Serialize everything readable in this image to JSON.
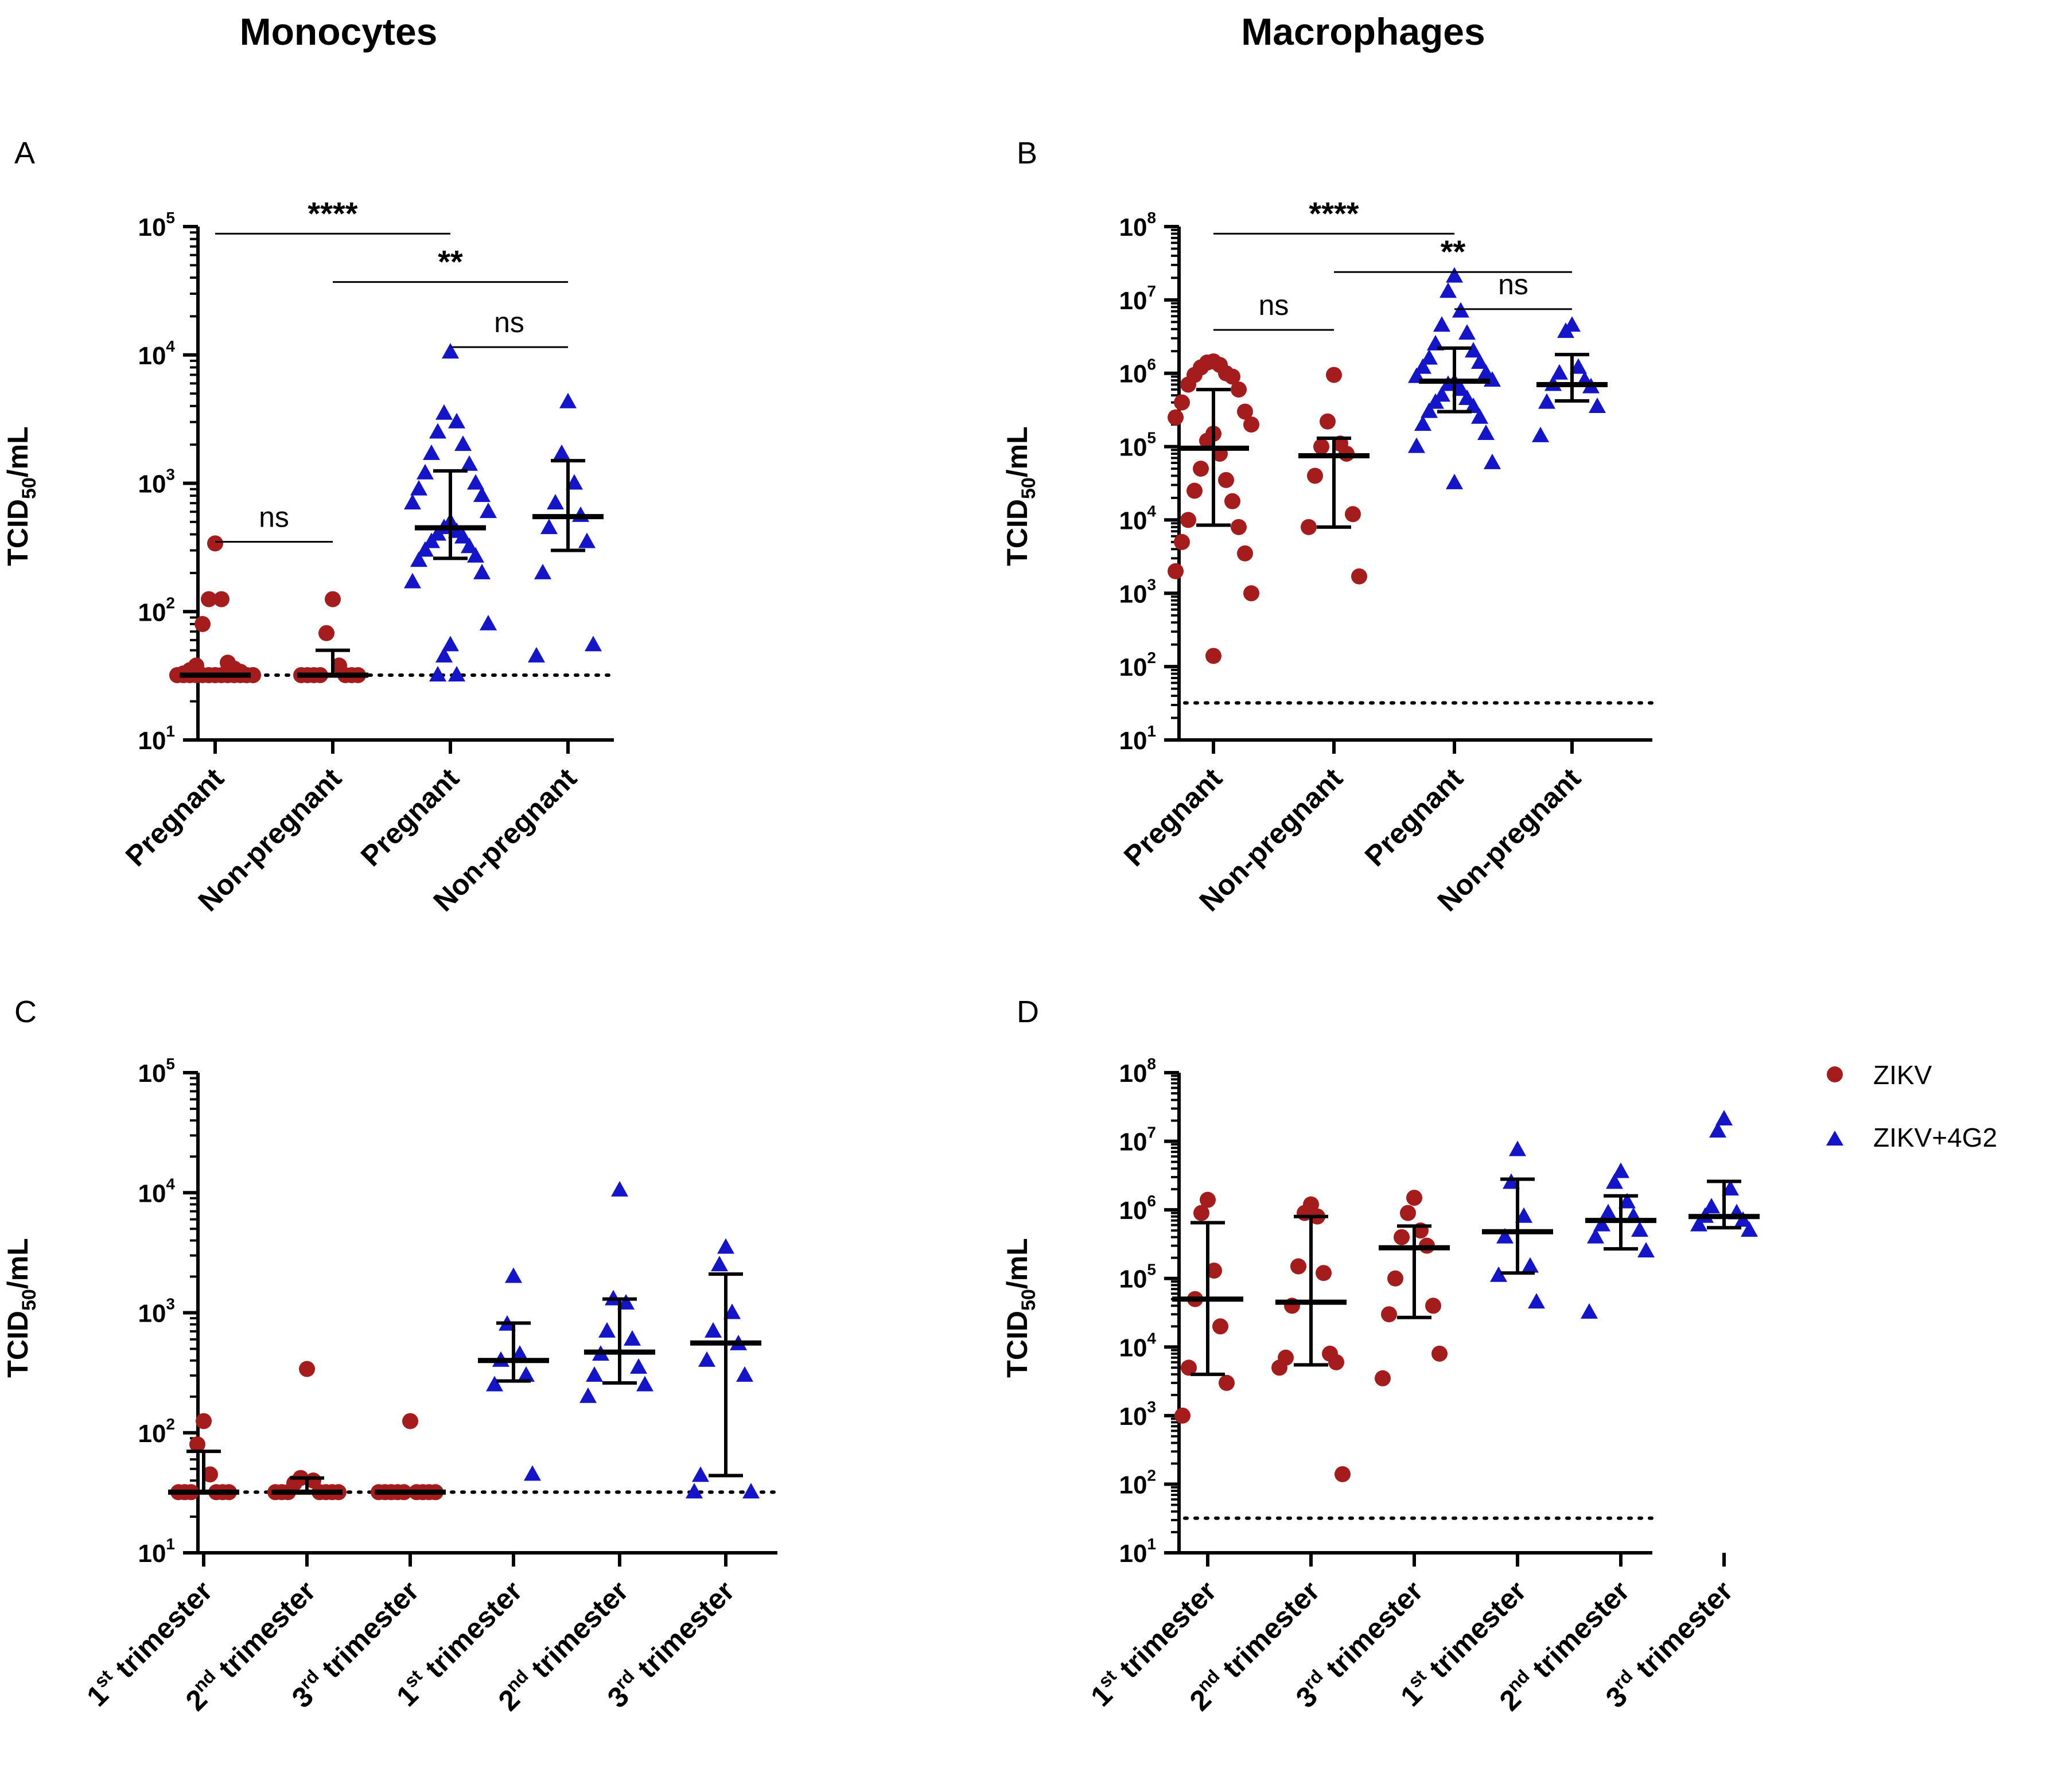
{
  "figure": {
    "column_titles": [
      "Monocytes",
      "Macrophages"
    ],
    "legend": [
      {
        "label": "ZIKV",
        "color": "#a51c1c",
        "marker": "circle"
      },
      {
        "label": "ZIKV+4G2",
        "color": "#1414c8",
        "marker": "triangle"
      }
    ],
    "ylabel": "TCID50/mL"
  },
  "chart_data": [
    {
      "panel": "A",
      "type": "scatter",
      "title": "Monocytes",
      "ylabel": "TCID50/mL",
      "yscale": "log",
      "ylim_exp": [
        1,
        5
      ],
      "categories": [
        "Pregnant",
        "Non-pregnant",
        "Pregnant",
        "Non-pregnant"
      ],
      "detection_limit": 32,
      "groups": [
        {
          "series": "ZIKV",
          "median": 32,
          "err": [
            32,
            32
          ],
          "points": [
            340,
            125,
            125,
            80,
            40,
            38,
            36,
            35,
            34,
            33,
            32,
            32,
            32,
            32,
            32,
            32,
            32,
            32,
            32,
            32,
            32,
            32,
            32,
            32,
            32,
            32,
            32,
            32
          ]
        },
        {
          "series": "ZIKV",
          "median": 32,
          "err": [
            32,
            50
          ],
          "points": [
            125,
            68,
            38,
            32,
            32,
            32,
            32,
            32,
            32,
            32
          ]
        },
        {
          "series": "ZIKV+4G2",
          "median": 450,
          "err": [
            260,
            1250
          ],
          "points": [
            10500,
            3500,
            3000,
            2500,
            2000,
            1700,
            1400,
            1200,
            1000,
            900,
            800,
            700,
            600,
            500,
            450,
            420,
            400,
            380,
            350,
            320,
            300,
            270,
            250,
            200,
            170,
            80,
            55,
            45,
            32,
            32
          ]
        },
        {
          "series": "ZIKV+4G2",
          "median": 550,
          "err": [
            300,
            1500
          ],
          "points": [
            4300,
            1700,
            1000,
            700,
            560,
            450,
            350,
            200,
            55,
            45
          ]
        }
      ],
      "comparisons": [
        {
          "from": 0,
          "to": 2,
          "label": "****",
          "y": 88000
        },
        {
          "from": 1,
          "to": 3,
          "label": "**",
          "y": 37000
        },
        {
          "from": 2,
          "to": 3,
          "label": "ns",
          "y": 11500
        },
        {
          "from": 0,
          "to": 1,
          "label": "ns",
          "y": 350
        }
      ]
    },
    {
      "panel": "B",
      "type": "scatter",
      "title": "Macrophages",
      "ylabel": "TCID50/mL",
      "yscale": "log",
      "ylim_exp": [
        1,
        8
      ],
      "categories": [
        "Pregnant",
        "Non-pregnant",
        "Pregnant",
        "Non-pregnant"
      ],
      "detection_limit": 32,
      "groups": [
        {
          "series": "ZIKV",
          "median": 95000,
          "err": [
            8500,
            600000
          ],
          "points": [
            1450000,
            1400000,
            1300000,
            1200000,
            1000000,
            950000,
            900000,
            700000,
            600000,
            400000,
            300000,
            250000,
            200000,
            150000,
            120000,
            80000,
            50000,
            35000,
            25000,
            18000,
            10000,
            8000,
            5000,
            3500,
            2000,
            1000,
            140
          ]
        },
        {
          "series": "ZIKV",
          "median": 75000,
          "err": [
            8000,
            130000
          ],
          "points": [
            950000,
            220000,
            110000,
            100000,
            80000,
            40000,
            12000,
            8000,
            1700
          ]
        },
        {
          "series": "ZIKV+4G2",
          "median": 780000,
          "err": [
            300000,
            2200000
          ],
          "points": [
            21000000,
            13000000,
            7000000,
            4500000,
            3500000,
            2500000,
            2000000,
            1600000,
            1400000,
            1200000,
            1000000,
            900000,
            800000,
            750000,
            700000,
            600000,
            500000,
            450000,
            400000,
            350000,
            300000,
            250000,
            200000,
            150000,
            100000,
            60000,
            32000
          ]
        },
        {
          "series": "ZIKV+4G2",
          "median": 700000,
          "err": [
            420000,
            1800000
          ],
          "points": [
            4500000,
            3700000,
            1200000,
            1000000,
            800000,
            700000,
            650000,
            400000,
            350000,
            140000
          ]
        }
      ],
      "comparisons": [
        {
          "from": 0,
          "to": 2,
          "label": "****",
          "y": 80000000
        },
        {
          "from": 1,
          "to": 3,
          "label": "**",
          "y": 24000000
        },
        {
          "from": 2,
          "to": 3,
          "label": "ns",
          "y": 7500000
        },
        {
          "from": 0,
          "to": 1,
          "label": "ns",
          "y": 3900000
        }
      ]
    },
    {
      "panel": "C",
      "type": "scatter",
      "title": "",
      "ylabel": "TCID50/mL",
      "yscale": "log",
      "ylim_exp": [
        1,
        5
      ],
      "categories": [
        "1st trimester",
        "2nd trimester",
        "3rd trimester",
        "1st trimester",
        "2nd trimester",
        "3rd trimester"
      ],
      "detection_limit": 32,
      "groups": [
        {
          "series": "ZIKV",
          "median": 32,
          "err": [
            32,
            70
          ],
          "points": [
            125,
            80,
            45,
            32,
            32,
            32,
            32,
            32,
            32
          ]
        },
        {
          "series": "ZIKV",
          "median": 32,
          "err": [
            32,
            42
          ],
          "points": [
            340,
            42,
            40,
            38,
            32,
            32,
            32,
            32,
            32,
            32,
            32
          ]
        },
        {
          "series": "ZIKV",
          "median": 32,
          "err": [
            32,
            32
          ],
          "points": [
            125,
            32,
            32,
            32,
            32,
            32,
            32,
            32,
            32,
            32
          ]
        },
        {
          "series": "ZIKV+4G2",
          "median": 400,
          "err": [
            270,
            820
          ],
          "points": [
            2000,
            800,
            450,
            400,
            300,
            250,
            45
          ]
        },
        {
          "series": "ZIKV+4G2",
          "median": 470,
          "err": [
            260,
            1300
          ],
          "points": [
            10500,
            1300,
            1200,
            700,
            600,
            450,
            350,
            300,
            250,
            200
          ]
        },
        {
          "series": "ZIKV+4G2",
          "median": 560,
          "err": [
            44,
            2100
          ],
          "points": [
            3500,
            2500,
            1000,
            700,
            550,
            400,
            300,
            44,
            32,
            32
          ]
        }
      ],
      "comparisons": []
    },
    {
      "panel": "D",
      "type": "scatter",
      "title": "",
      "ylabel": "TCID50/mL",
      "yscale": "log",
      "ylim_exp": [
        1,
        8
      ],
      "categories": [
        "1st trimester",
        "2nd trimester",
        "3rd trimester",
        "1st trimester",
        "2nd trimester",
        "3rd trimester"
      ],
      "detection_limit": 32,
      "groups": [
        {
          "series": "ZIKV",
          "median": 50000,
          "err": [
            4000,
            650000
          ],
          "points": [
            1400000,
            900000,
            130000,
            50000,
            20000,
            5000,
            3000,
            1000
          ]
        },
        {
          "series": "ZIKV",
          "median": 45000,
          "err": [
            5500,
            800000
          ],
          "points": [
            1200000,
            900000,
            800000,
            150000,
            120000,
            40000,
            8000,
            7000,
            6000,
            5000,
            140
          ]
        },
        {
          "series": "ZIKV",
          "median": 280000,
          "err": [
            27000,
            580000
          ],
          "points": [
            1500000,
            900000,
            500000,
            400000,
            300000,
            100000,
            40000,
            30000,
            8000,
            3500
          ]
        },
        {
          "series": "ZIKV+4G2",
          "median": 480000,
          "err": [
            120000,
            2800000
          ],
          "points": [
            7500000,
            2500000,
            800000,
            400000,
            150000,
            110000,
            45000
          ]
        },
        {
          "series": "ZIKV+4G2",
          "median": 700000,
          "err": [
            270000,
            1600000
          ],
          "points": [
            3600000,
            2500000,
            1300000,
            900000,
            800000,
            600000,
            500000,
            400000,
            250000,
            32000
          ]
        },
        {
          "series": "ZIKV+4G2",
          "median": 800000,
          "err": [
            550000,
            2600000
          ],
          "points": [
            21000000,
            14000000,
            2000000,
            1100000,
            900000,
            800000,
            700000,
            600000,
            500000
          ]
        }
      ],
      "comparisons": []
    }
  ]
}
